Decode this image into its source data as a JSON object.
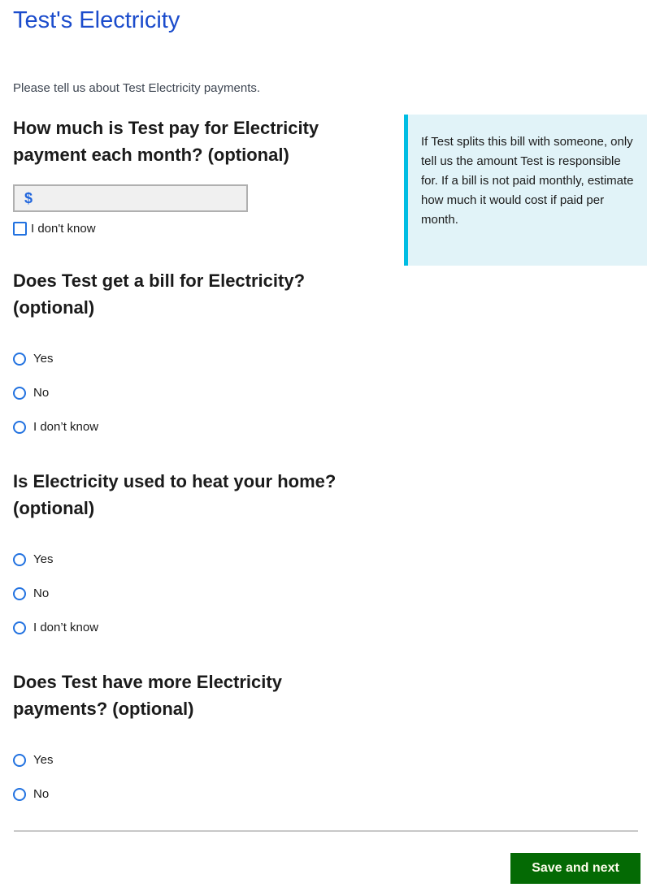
{
  "page": {
    "title": "Test's Electricity",
    "intro": "Please tell us about Test Electricity payments."
  },
  "amount_question": {
    "label": "How much is Test pay for Electricity payment each month? (optional)",
    "currency_symbol": "$",
    "input_value": "",
    "input_placeholder": "",
    "dont_know_label": "I don't know"
  },
  "info_box": {
    "text": "If Test splits this bill with someone, only tell us the amount Test is responsible for. If a bill is not paid monthly, estimate how much it would cost if paid per month."
  },
  "questions": [
    {
      "label": "Does Test get a bill for Electricity? (optional)",
      "options": [
        "Yes",
        "No",
        "I don’t know"
      ]
    },
    {
      "label": "Is Electricity used to heat your home? (optional)",
      "options": [
        "Yes",
        "No",
        "I don’t know"
      ]
    },
    {
      "label": "Does Test have more Electricity payments? (optional)",
      "options": [
        "Yes",
        "No"
      ]
    }
  ],
  "footer": {
    "save_button": "Save and next"
  },
  "colors": {
    "title_blue": "#1b4ccc",
    "control_blue": "#2272e0",
    "info_background": "#e1f3f8",
    "info_border": "#00bde3",
    "button_green": "#046a04",
    "divider_gray": "#c8c8c8"
  }
}
